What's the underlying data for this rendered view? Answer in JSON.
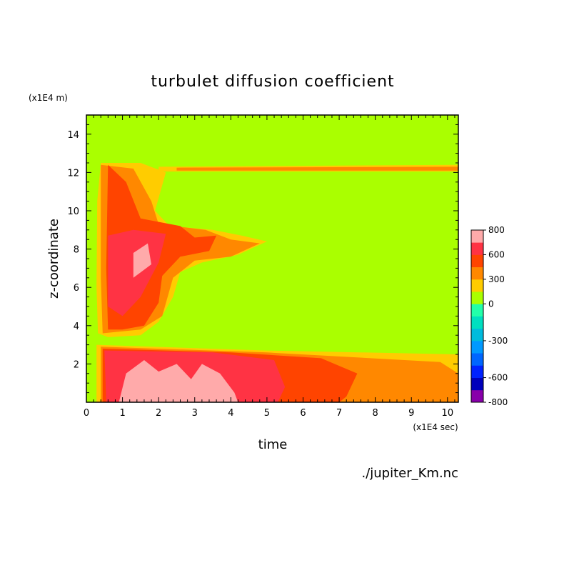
{
  "chart_data": {
    "type": "heatmap",
    "title": "turbulet diffusion coefficient",
    "xlabel": "time",
    "ylabel": "z-coordinate",
    "x_unit": "(x1E4 sec)",
    "y_unit": "(x1E4 m)",
    "source_label": "./jupiter_Km.nc",
    "xlim": [
      0,
      10.3
    ],
    "ylim": [
      0,
      15
    ],
    "x_ticks": [
      0,
      1,
      2,
      3,
      4,
      5,
      6,
      7,
      8,
      9,
      10
    ],
    "y_ticks": [
      2,
      4,
      6,
      8,
      10,
      12,
      14
    ],
    "colorbar": {
      "levels": [
        -800,
        -700,
        -600,
        -500,
        -400,
        -300,
        -200,
        -100,
        0,
        150,
        300,
        450,
        600,
        700,
        800
      ],
      "labels": [
        "800",
        "600",
        "300",
        "0",
        "-300",
        "-600",
        "-800"
      ],
      "label_values": [
        800,
        600,
        300,
        0,
        -300,
        -600,
        -800
      ],
      "colors": [
        "#8800aa",
        "#0000bb",
        "#0022ff",
        "#0066ff",
        "#0099ff",
        "#00bbdd",
        "#00dfc0",
        "#22ffaa",
        "#aaff00",
        "#ffcc00",
        "#ff8800",
        "#ff4400",
        "#ff3344",
        "#ffaaaa"
      ]
    },
    "regions": [
      {
        "level": 150,
        "points": [
          [
            0.28,
            0.0
          ],
          [
            0.28,
            3.0
          ],
          [
            5.0,
            2.7
          ],
          [
            10.3,
            2.5
          ],
          [
            10.3,
            0.0
          ]
        ]
      },
      {
        "level": 150,
        "points": [
          [
            0.32,
            3.6
          ],
          [
            0.28,
            6.0
          ],
          [
            0.3,
            10.5
          ],
          [
            0.4,
            12.5
          ],
          [
            1.5,
            12.5
          ],
          [
            2.2,
            12.0
          ],
          [
            1.9,
            10.0
          ],
          [
            2.3,
            9.2
          ],
          [
            3.5,
            9.0
          ],
          [
            4.3,
            8.7
          ],
          [
            5.0,
            8.4
          ],
          [
            4.2,
            7.7
          ],
          [
            3.2,
            7.3
          ],
          [
            2.6,
            6.8
          ],
          [
            2.4,
            5.5
          ],
          [
            2.0,
            4.2
          ],
          [
            1.5,
            3.5
          ],
          [
            0.6,
            3.4
          ]
        ]
      },
      {
        "level": 150,
        "points": [
          [
            2.0,
            12.3
          ],
          [
            10.3,
            12.4
          ],
          [
            10.3,
            12.05
          ],
          [
            2.0,
            12.05
          ]
        ]
      },
      {
        "level": 300,
        "points": [
          [
            0.4,
            0.0
          ],
          [
            0.4,
            2.9
          ],
          [
            5.0,
            2.6
          ],
          [
            9.8,
            2.1
          ],
          [
            10.3,
            1.5
          ],
          [
            10.3,
            0.0
          ]
        ]
      },
      {
        "level": 300,
        "points": [
          [
            0.45,
            3.6
          ],
          [
            0.4,
            6.5
          ],
          [
            0.4,
            12.4
          ],
          [
            1.3,
            12.2
          ],
          [
            1.8,
            10.5
          ],
          [
            2.0,
            9.3
          ],
          [
            3.3,
            9.0
          ],
          [
            4.0,
            8.5
          ],
          [
            4.8,
            8.3
          ],
          [
            4.0,
            7.6
          ],
          [
            3.0,
            7.4
          ],
          [
            2.4,
            6.5
          ],
          [
            2.1,
            4.5
          ],
          [
            1.5,
            3.8
          ]
        ]
      },
      {
        "level": 300,
        "points": [
          [
            2.5,
            12.25
          ],
          [
            10.3,
            12.3
          ],
          [
            10.3,
            12.1
          ],
          [
            2.5,
            12.1
          ]
        ]
      },
      {
        "level": 450,
        "points": [
          [
            0.45,
            0.0
          ],
          [
            0.45,
            2.8
          ],
          [
            4.0,
            2.6
          ],
          [
            6.5,
            2.3
          ],
          [
            7.5,
            1.5
          ],
          [
            7.2,
            0.3
          ],
          [
            7.0,
            0.0
          ]
        ]
      },
      {
        "level": 450,
        "points": [
          [
            0.6,
            3.8
          ],
          [
            0.55,
            7.0
          ],
          [
            0.6,
            12.4
          ],
          [
            1.1,
            11.5
          ],
          [
            1.5,
            9.6
          ],
          [
            2.6,
            9.2
          ],
          [
            3.0,
            8.6
          ],
          [
            3.6,
            8.7
          ],
          [
            3.4,
            7.9
          ],
          [
            2.6,
            7.6
          ],
          [
            2.1,
            6.6
          ],
          [
            2.0,
            5.2
          ],
          [
            1.6,
            4.0
          ],
          [
            1.0,
            3.8
          ]
        ]
      },
      {
        "level": 600,
        "points": [
          [
            0.55,
            0.0
          ],
          [
            0.5,
            2.7
          ],
          [
            3.5,
            2.6
          ],
          [
            5.2,
            2.2
          ],
          [
            5.5,
            0.8
          ],
          [
            5.3,
            0.0
          ]
        ]
      },
      {
        "level": 600,
        "points": [
          [
            0.6,
            5.0
          ],
          [
            0.6,
            8.7
          ],
          [
            1.3,
            9.0
          ],
          [
            2.2,
            8.8
          ],
          [
            2.0,
            7.3
          ],
          [
            1.5,
            5.5
          ],
          [
            1.0,
            4.5
          ]
        ]
      },
      {
        "level": 700,
        "points": [
          [
            0.9,
            0.0
          ],
          [
            1.1,
            1.5
          ],
          [
            1.6,
            2.2
          ],
          [
            2.0,
            1.6
          ],
          [
            2.5,
            2.0
          ],
          [
            2.9,
            1.2
          ],
          [
            3.2,
            2.0
          ],
          [
            3.7,
            1.5
          ],
          [
            4.1,
            0.5
          ],
          [
            4.2,
            0.0
          ]
        ]
      },
      {
        "level": 700,
        "points": [
          [
            1.3,
            6.5
          ],
          [
            1.3,
            7.8
          ],
          [
            1.7,
            8.3
          ],
          [
            1.8,
            7.2
          ]
        ]
      }
    ]
  }
}
